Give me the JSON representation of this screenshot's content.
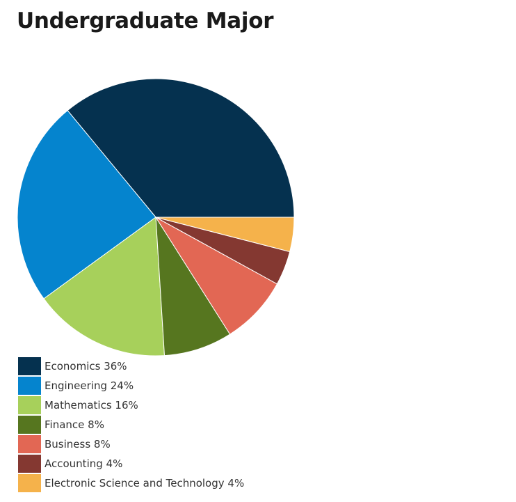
{
  "chart_data": {
    "type": "pie",
    "title": "Undergraduate Major",
    "slices": [
      {
        "label": "Economics 36%",
        "category": "Economics",
        "value": 36,
        "color": "#05314f"
      },
      {
        "label": "Engineering 24%",
        "category": "Engineering",
        "value": 24,
        "color": "#0584ce"
      },
      {
        "label": "Mathematics 16%",
        "category": "Mathematics",
        "value": 16,
        "color": "#a7d05b"
      },
      {
        "label": "Finance 8%",
        "category": "Finance",
        "value": 8,
        "color": "#56761f"
      },
      {
        "label": "Business 8%",
        "category": "Business",
        "value": 8,
        "color": "#e26754"
      },
      {
        "label": "Accounting 4%",
        "category": "Accounting",
        "value": 4,
        "color": "#843831"
      },
      {
        "label": "Electronic Science and Technology 4%",
        "category": "Electronic Science and Technology",
        "value": 4,
        "color": "#f5b24b"
      }
    ],
    "legend": "bottom-left",
    "slice_borders": "white"
  }
}
